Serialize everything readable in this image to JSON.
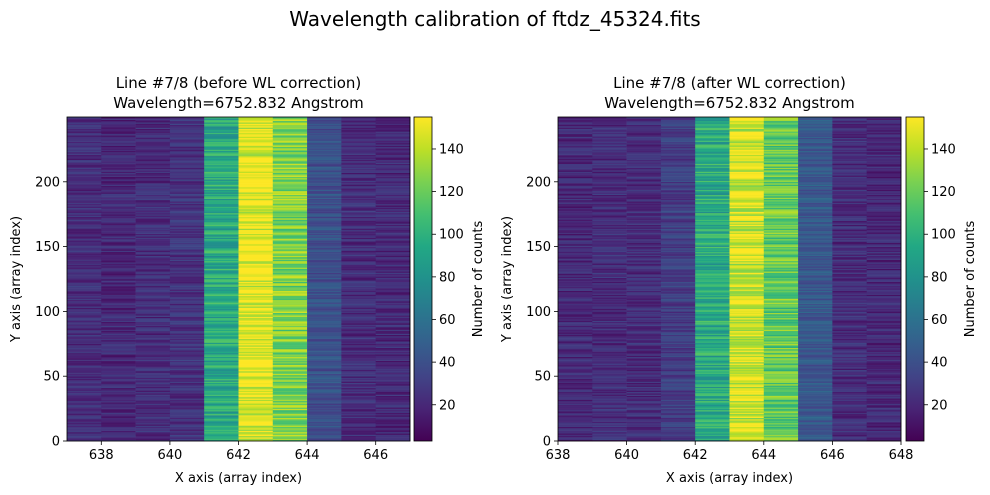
{
  "suptitle": "Wavelength calibration of ftdz_45324.fits",
  "chart_data": [
    {
      "type": "heatmap",
      "title_line1": "Line #7/8 (before WL correction)",
      "title_line2": "Wavelength=6752.832 Angstrom",
      "xlabel": "X axis (array index)",
      "ylabel": "Y axis (array index)",
      "xlim": [
        637,
        647
      ],
      "ylim": [
        0,
        250
      ],
      "xticks": [
        "638",
        "640",
        "642",
        "644",
        "646"
      ],
      "yticks": [
        "0",
        "50",
        "100",
        "150",
        "200"
      ],
      "columns": [
        637,
        638,
        639,
        640,
        641,
        642,
        643,
        644,
        645,
        646
      ],
      "column_mean_counts": [
        22,
        20,
        22,
        25,
        95,
        150,
        125,
        40,
        22,
        20
      ],
      "rows": 250,
      "colorbar": {
        "label": "Number of counts",
        "vmin": 3,
        "vmax": 155,
        "ticks": [
          "20",
          "40",
          "60",
          "80",
          "100",
          "120",
          "140"
        ]
      }
    },
    {
      "type": "heatmap",
      "title_line1": "Line #7/8 (after WL correction)",
      "title_line2": "Wavelength=6752.832 Angstrom",
      "xlabel": "X axis (array index)",
      "ylabel": "Y axis (array index)",
      "xlim": [
        638,
        648
      ],
      "ylim": [
        0,
        250
      ],
      "xticks": [
        "638",
        "640",
        "642",
        "644",
        "646",
        "648"
      ],
      "yticks": [
        "0",
        "50",
        "100",
        "150",
        "200"
      ],
      "columns": [
        638,
        639,
        640,
        641,
        642,
        643,
        644,
        645,
        646,
        647
      ],
      "column_mean_counts": [
        20,
        22,
        22,
        30,
        95,
        145,
        118,
        45,
        22,
        20
      ],
      "rows": 250,
      "colorbar": {
        "label": "Number of counts",
        "vmin": 3,
        "vmax": 155,
        "ticks": [
          "20",
          "40",
          "60",
          "80",
          "100",
          "120",
          "140"
        ]
      }
    }
  ]
}
